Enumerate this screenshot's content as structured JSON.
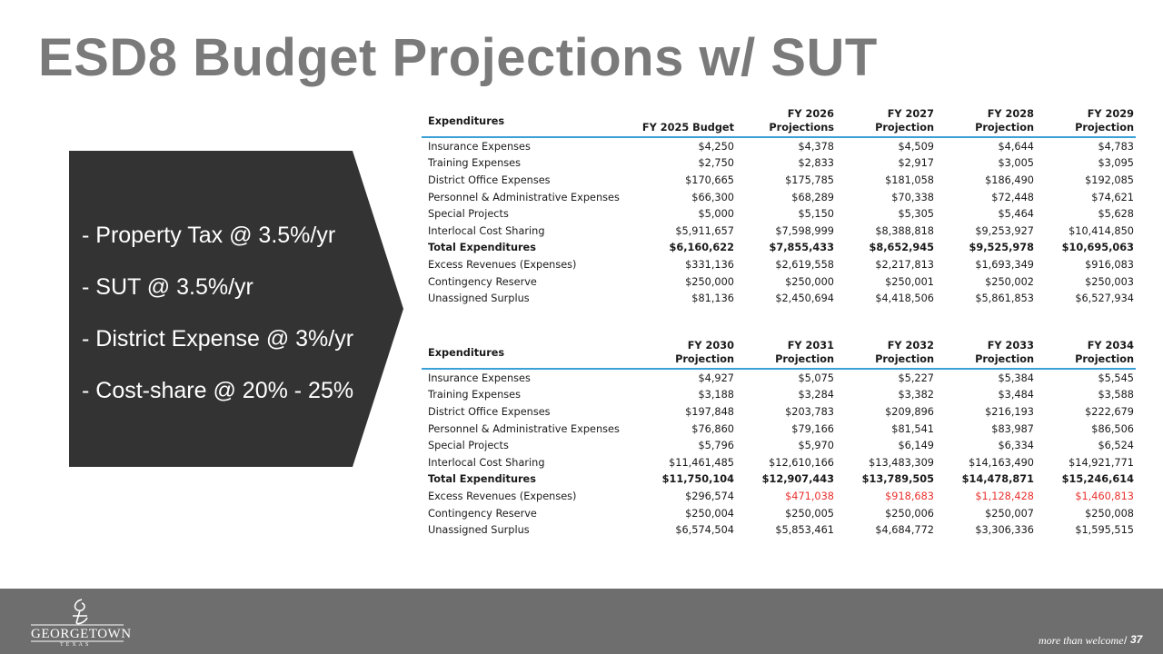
{
  "title": "ESD8 Budget Projections w/ SUT",
  "bullets": [
    "- Property Tax @ 3.5%/yr",
    "- SUT @ 3.5%/yr",
    "- District Expense @ 3%/yr",
    "- Cost-share @ 20% - 25%"
  ],
  "table1": {
    "headers": [
      {
        "l1": "",
        "l2": "Expenditures"
      },
      {
        "l1": "",
        "l2": "FY 2025 Budget"
      },
      {
        "l1": "FY 2026",
        "l2": "Projections"
      },
      {
        "l1": "FY 2027",
        "l2": "Projection"
      },
      {
        "l1": "FY 2028",
        "l2": "Projection"
      },
      {
        "l1": "FY 2029",
        "l2": "Projection"
      }
    ],
    "rows": [
      [
        "Insurance Expenses",
        "$4,250",
        "$4,378",
        "$4,509",
        "$4,644",
        "$4,783"
      ],
      [
        "Training Expenses",
        "$2,750",
        "$2,833",
        "$2,917",
        "$3,005",
        "$3,095"
      ],
      [
        "District Office Expenses",
        "$170,665",
        "$175,785",
        "$181,058",
        "$186,490",
        "$192,085"
      ],
      [
        "Personnel & Administrative Expenses",
        "$66,300",
        "$68,289",
        "$70,338",
        "$72,448",
        "$74,621"
      ],
      [
        "Special Projects",
        "$5,000",
        "$5,150",
        "$5,305",
        "$5,464",
        "$5,628"
      ],
      [
        "Interlocal Cost Sharing",
        "$5,911,657",
        "$7,598,999",
        "$8,388,818",
        "$9,253,927",
        "$10,414,850"
      ],
      [
        "Total Expenditures",
        "$6,160,622",
        "$7,855,433",
        "$8,652,945",
        "$9,525,978",
        "$10,695,063"
      ],
      [
        "Excess Revenues (Expenses)",
        "$331,136",
        "$2,619,558",
        "$2,217,813",
        "$1,693,349",
        "$916,083"
      ],
      [
        "Contingency Reserve",
        "$250,000",
        "$250,000",
        "$250,001",
        "$250,002",
        "$250,003"
      ],
      [
        "Unassigned Surplus",
        "$81,136",
        "$2,450,694",
        "$4,418,506",
        "$5,861,853",
        "$6,527,934"
      ]
    ]
  },
  "table2": {
    "headers": [
      {
        "l1": "",
        "l2": "Expenditures"
      },
      {
        "l1": "FY 2030",
        "l2": "Projection"
      },
      {
        "l1": "FY 2031",
        "l2": "Projection"
      },
      {
        "l1": "FY 2032",
        "l2": "Projection"
      },
      {
        "l1": "FY 2033",
        "l2": "Projection"
      },
      {
        "l1": "FY 2034",
        "l2": "Projection"
      }
    ],
    "rows": [
      [
        "Insurance Expenses",
        "$4,927",
        "$5,075",
        "$5,227",
        "$5,384",
        "$5,545"
      ],
      [
        "Training Expenses",
        "$3,188",
        "$3,284",
        "$3,382",
        "$3,484",
        "$3,588"
      ],
      [
        "District Office Expenses",
        "$197,848",
        "$203,783",
        "$209,896",
        "$216,193",
        "$222,679"
      ],
      [
        "Personnel & Administrative Expenses",
        "$76,860",
        "$79,166",
        "$81,541",
        "$83,987",
        "$86,506"
      ],
      [
        "Special Projects",
        "$5,796",
        "$5,970",
        "$6,149",
        "$6,334",
        "$6,524"
      ],
      [
        "Interlocal Cost Sharing",
        "$11,461,485",
        "$12,610,166",
        "$13,483,309",
        "$14,163,490",
        "$14,921,771"
      ],
      [
        "Total Expenditures",
        "$11,750,104",
        "$12,907,443",
        "$13,789,505",
        "$14,478,871",
        "$15,246,614"
      ],
      [
        "Excess Revenues (Expenses)",
        "$296,574",
        "$471,038",
        "$918,683",
        "$1,128,428",
        "$1,460,813"
      ],
      [
        "Contingency Reserve",
        "$250,004",
        "$250,005",
        "$250,006",
        "$250,007",
        "$250,008"
      ],
      [
        "Unassigned Surplus",
        "$6,574,504",
        "$5,853,461",
        "$4,684,772",
        "$3,306,336",
        "$1,595,515"
      ]
    ]
  },
  "footer": {
    "logo_text": "GEORGETOWN",
    "logo_sub": "TEXAS",
    "tagline": "more than welcome",
    "separator": "/",
    "page_number": "37"
  },
  "colors": {
    "title": "#7a7a7a",
    "callout_bg": "#333333",
    "header_rule": "#3aa0d8",
    "negative": "#e8322f",
    "footer_bg": "#6e6e6e"
  }
}
